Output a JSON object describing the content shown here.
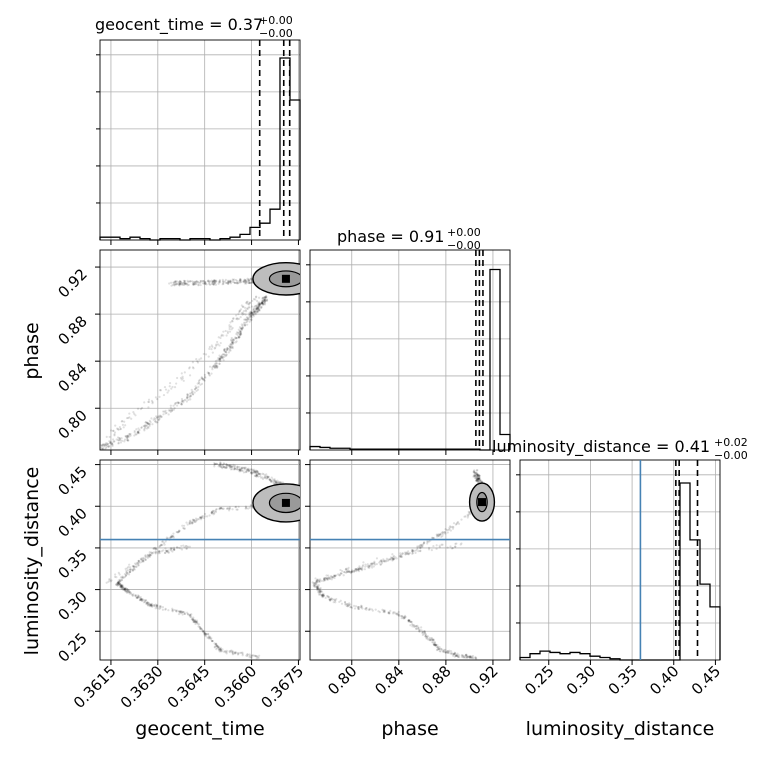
{
  "chart_data": {
    "type": "corner",
    "parameters": [
      {
        "name": "geocent_time",
        "label": "geocent_time",
        "range": [
          0.36115,
          0.36755
        ],
        "ticks": [
          "0.3615",
          "0.3630",
          "0.3645",
          "0.3660",
          "0.3675"
        ],
        "tick_values": [
          0.3615,
          0.363,
          0.3645,
          0.366,
          0.3675
        ]
      },
      {
        "name": "phase",
        "label": "phase",
        "range": [
          0.7645,
          0.9345
        ],
        "ticks": [
          "0.80",
          "0.84",
          "0.88",
          "0.92"
        ],
        "tick_values": [
          0.8,
          0.84,
          0.88,
          0.92
        ]
      },
      {
        "name": "luminosity_distance",
        "label": "luminosity_distance",
        "range": [
          0.2155,
          0.4555
        ],
        "ticks": [
          "0.25",
          "0.30",
          "0.35",
          "0.40",
          "0.45"
        ],
        "tick_values": [
          0.25,
          0.3,
          0.35,
          0.4,
          0.45
        ]
      }
    ],
    "titles": [
      {
        "name": "geocent_time",
        "value": "0.37",
        "plus": "+0.00",
        "minus": "−0.00"
      },
      {
        "name": "phase",
        "value": "0.91",
        "plus": "+0.00",
        "minus": "−0.00"
      },
      {
        "name": "luminosity_distance",
        "value": "0.41",
        "plus": "+0.02",
        "minus": "−0.00"
      }
    ],
    "histograms": [
      {
        "param": "geocent_time",
        "bins": 20,
        "counts": [
          2,
          2,
          1,
          2,
          1,
          0,
          1,
          1,
          0,
          1,
          1,
          0,
          1,
          2,
          4,
          9,
          12,
          22,
          130,
          100
        ],
        "quantiles": [
          0.36626,
          0.36703,
          0.36722
        ],
        "ymax": 140
      },
      {
        "param": "phase",
        "bins": 20,
        "counts": [
          4,
          3,
          2,
          2,
          1,
          1,
          1,
          1,
          1,
          1,
          1,
          1,
          1,
          1,
          1,
          1,
          1,
          0,
          210,
          18
        ],
        "quantiles": [
          0.9055,
          0.9085,
          0.9115
        ],
        "ymax": 228
      },
      {
        "param": "luminosity_distance",
        "bins": 20,
        "counts": [
          2,
          5,
          7,
          6,
          5,
          6,
          5,
          3,
          2,
          1,
          0,
          0,
          0,
          0,
          0,
          0,
          140,
          95,
          60,
          42
        ],
        "quantiles": [
          0.4025,
          0.4065,
          0.4285
        ],
        "ymax": 155
      }
    ],
    "truths": {
      "luminosity_distance": 0.36
    },
    "truth_color": "#4682b4",
    "grid": true,
    "contour_fill": "#bdbdbd",
    "line_color": "#000000",
    "scatter_color": "#000000"
  }
}
